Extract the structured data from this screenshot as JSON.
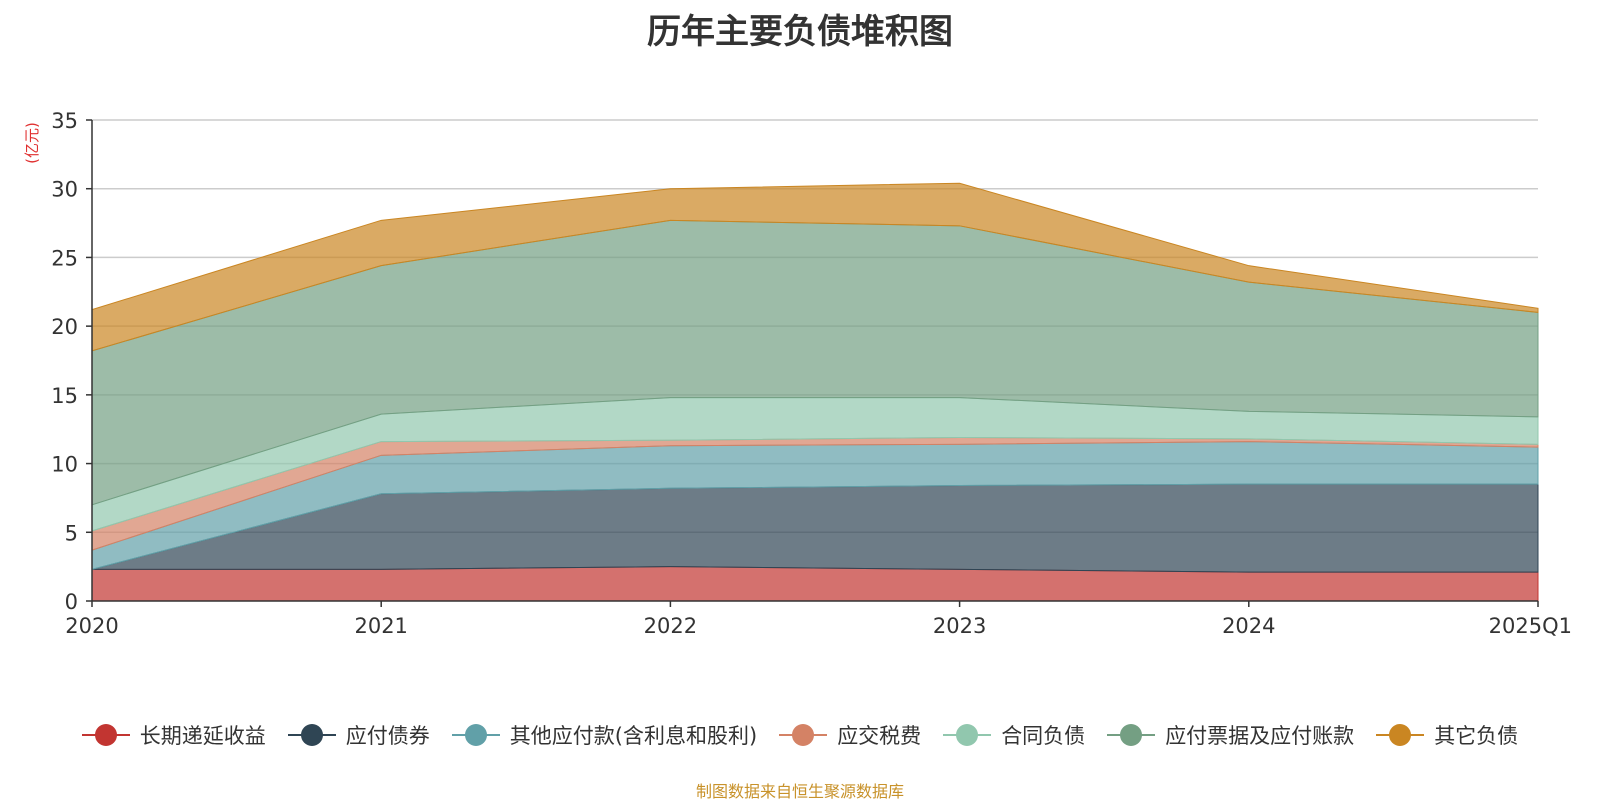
{
  "chart_data": {
    "type": "area",
    "stacked": true,
    "title": "历年主要负债堆积图",
    "unit_label": "(亿元)",
    "categories": [
      "2020",
      "2021",
      "2022",
      "2023",
      "2024",
      "2025Q1"
    ],
    "ylim": [
      0,
      35
    ],
    "yticks": [
      0,
      5,
      10,
      15,
      20,
      25,
      30,
      35
    ],
    "grid": true,
    "legend_position": "bottom",
    "series": [
      {
        "name": "长期递延收益",
        "color": "#c23531",
        "values": [
          2.3,
          2.3,
          2.5,
          2.3,
          2.1,
          2.1
        ]
      },
      {
        "name": "应付债券",
        "color": "#2f4554",
        "values": [
          0.0,
          5.5,
          5.7,
          6.1,
          6.4,
          6.4
        ]
      },
      {
        "name": "其他应付款(含利息和股利)",
        "color": "#61a0a8",
        "values": [
          1.4,
          2.8,
          3.1,
          3.0,
          3.1,
          2.7
        ]
      },
      {
        "name": "应交税费",
        "color": "#d48265",
        "values": [
          1.4,
          1.0,
          0.4,
          0.5,
          0.2,
          0.2
        ]
      },
      {
        "name": "合同负债",
        "color": "#91c7ae",
        "values": [
          1.9,
          2.0,
          3.1,
          2.9,
          2.0,
          2.0
        ]
      },
      {
        "name": "应付票据及应付账款",
        "color": "#749f83",
        "values": [
          11.2,
          10.8,
          12.9,
          12.5,
          9.4,
          7.6
        ]
      },
      {
        "name": "其它负债",
        "color": "#ca8622",
        "values": [
          3.0,
          3.3,
          2.3,
          3.1,
          1.2,
          0.3
        ]
      }
    ]
  },
  "source_note": "制图数据来自恒生聚源数据库"
}
